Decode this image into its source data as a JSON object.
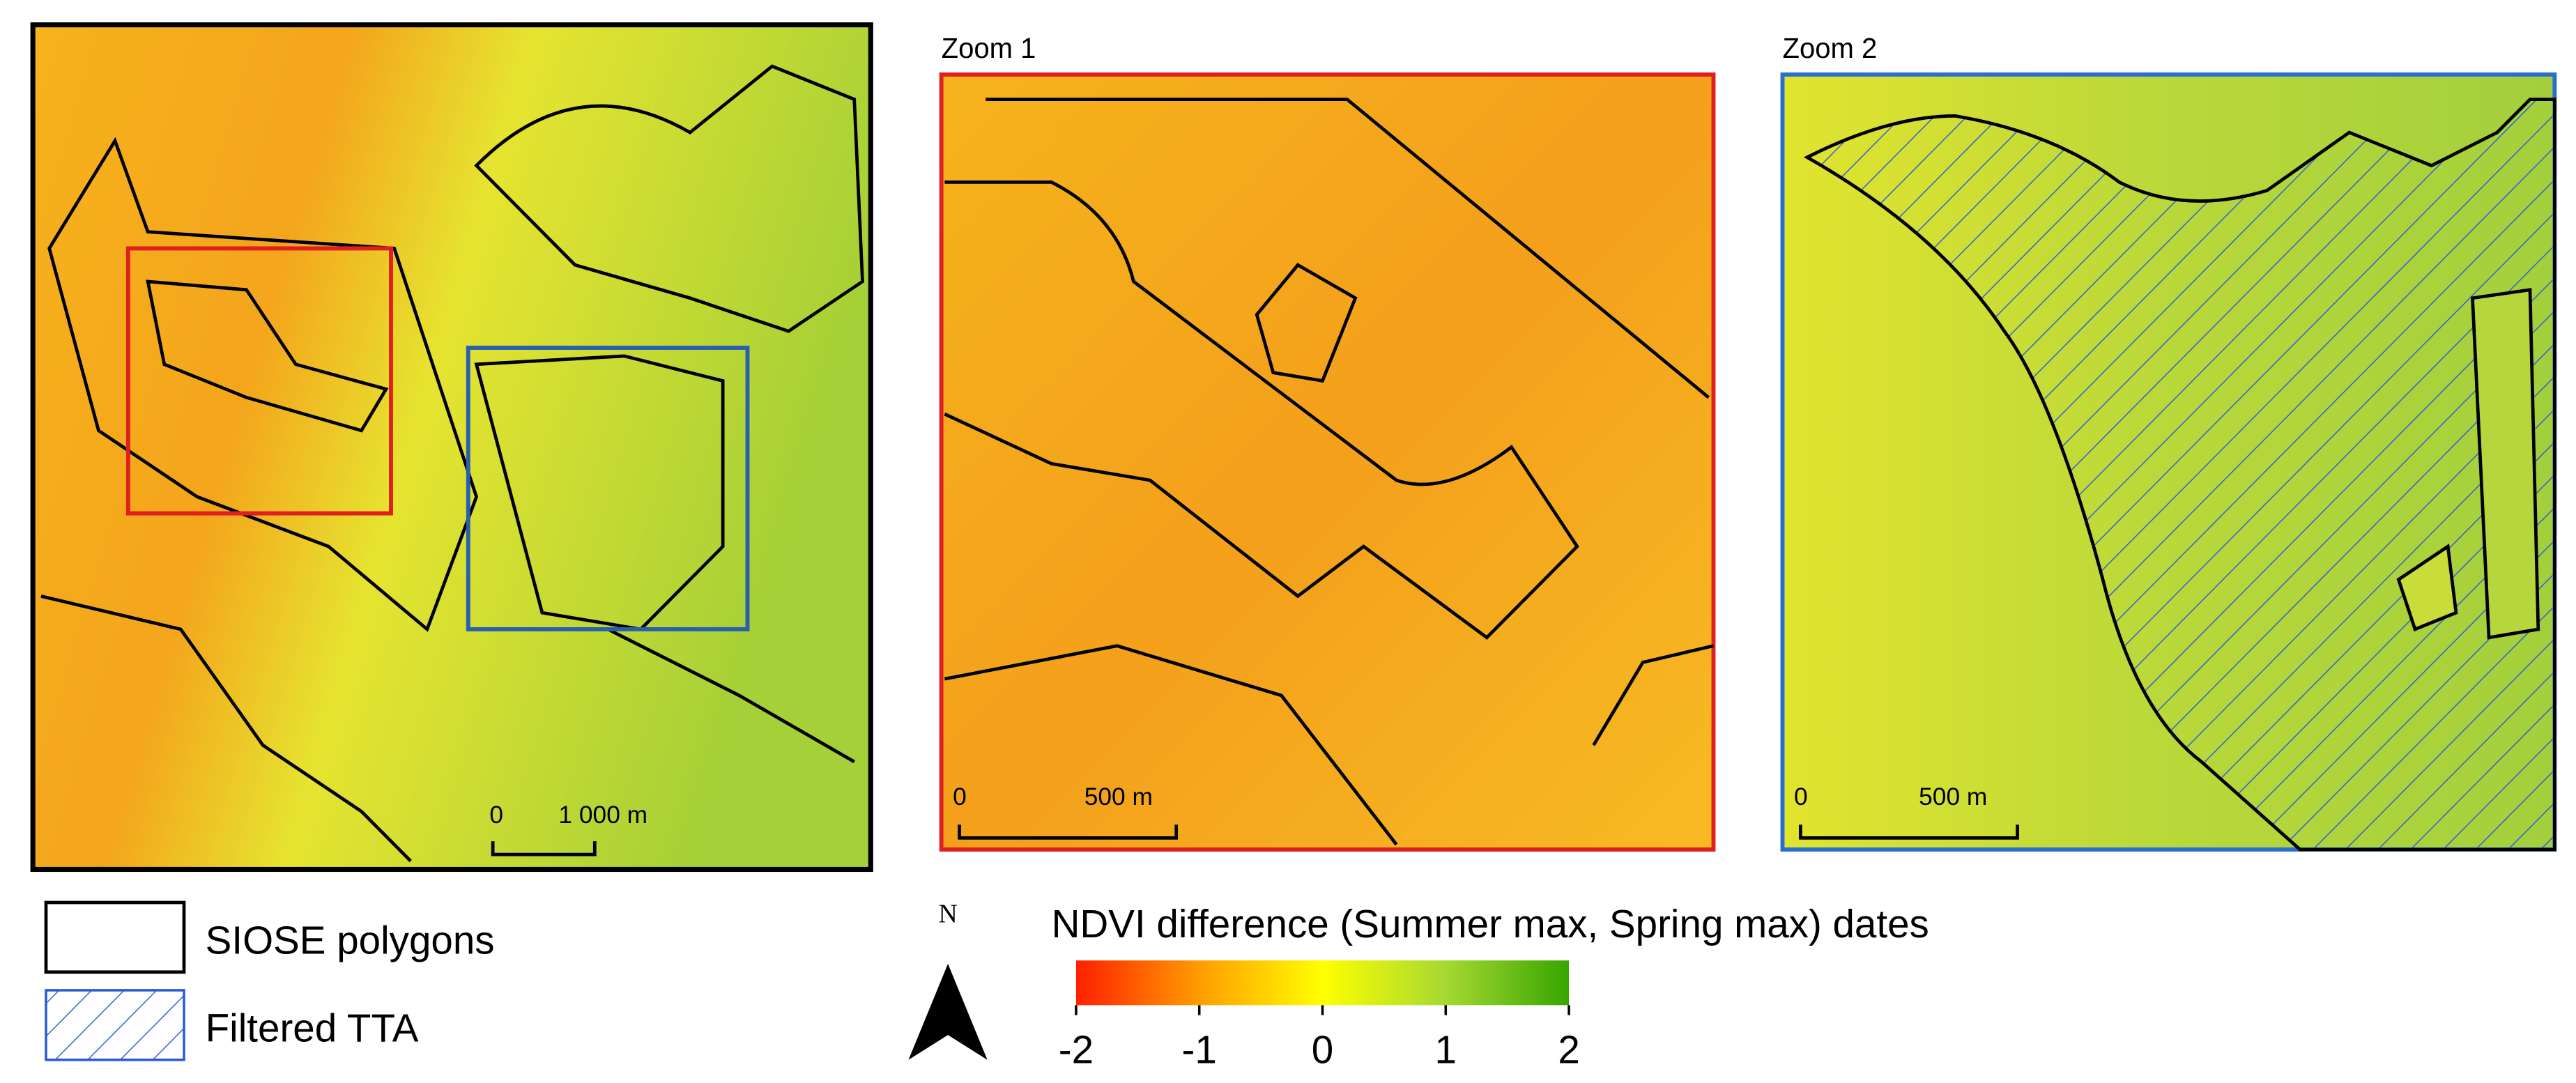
{
  "panels": [
    {
      "label": null,
      "scale_bar": {
        "start": "0",
        "end": "1 000 m"
      }
    },
    {
      "label": "Zoom 1",
      "scale_bar": {
        "start": "0",
        "end": "500 m"
      }
    },
    {
      "label": "Zoom 2",
      "scale_bar": {
        "start": "0",
        "end": "500 m"
      }
    }
  ],
  "legend": {
    "items": [
      "SIOSE polygons",
      "Filtered TTA"
    ]
  },
  "north_arrow": "N",
  "colorbar": {
    "title": "NDVI difference (Summer max, Spring max) dates",
    "lim": [
      -2,
      2
    ],
    "ticks": [
      -2,
      -1,
      0,
      1,
      2
    ],
    "colors": [
      "#ff2000",
      "#ff9c00",
      "#ffff00",
      "#a6d832",
      "#38a500"
    ]
  }
}
